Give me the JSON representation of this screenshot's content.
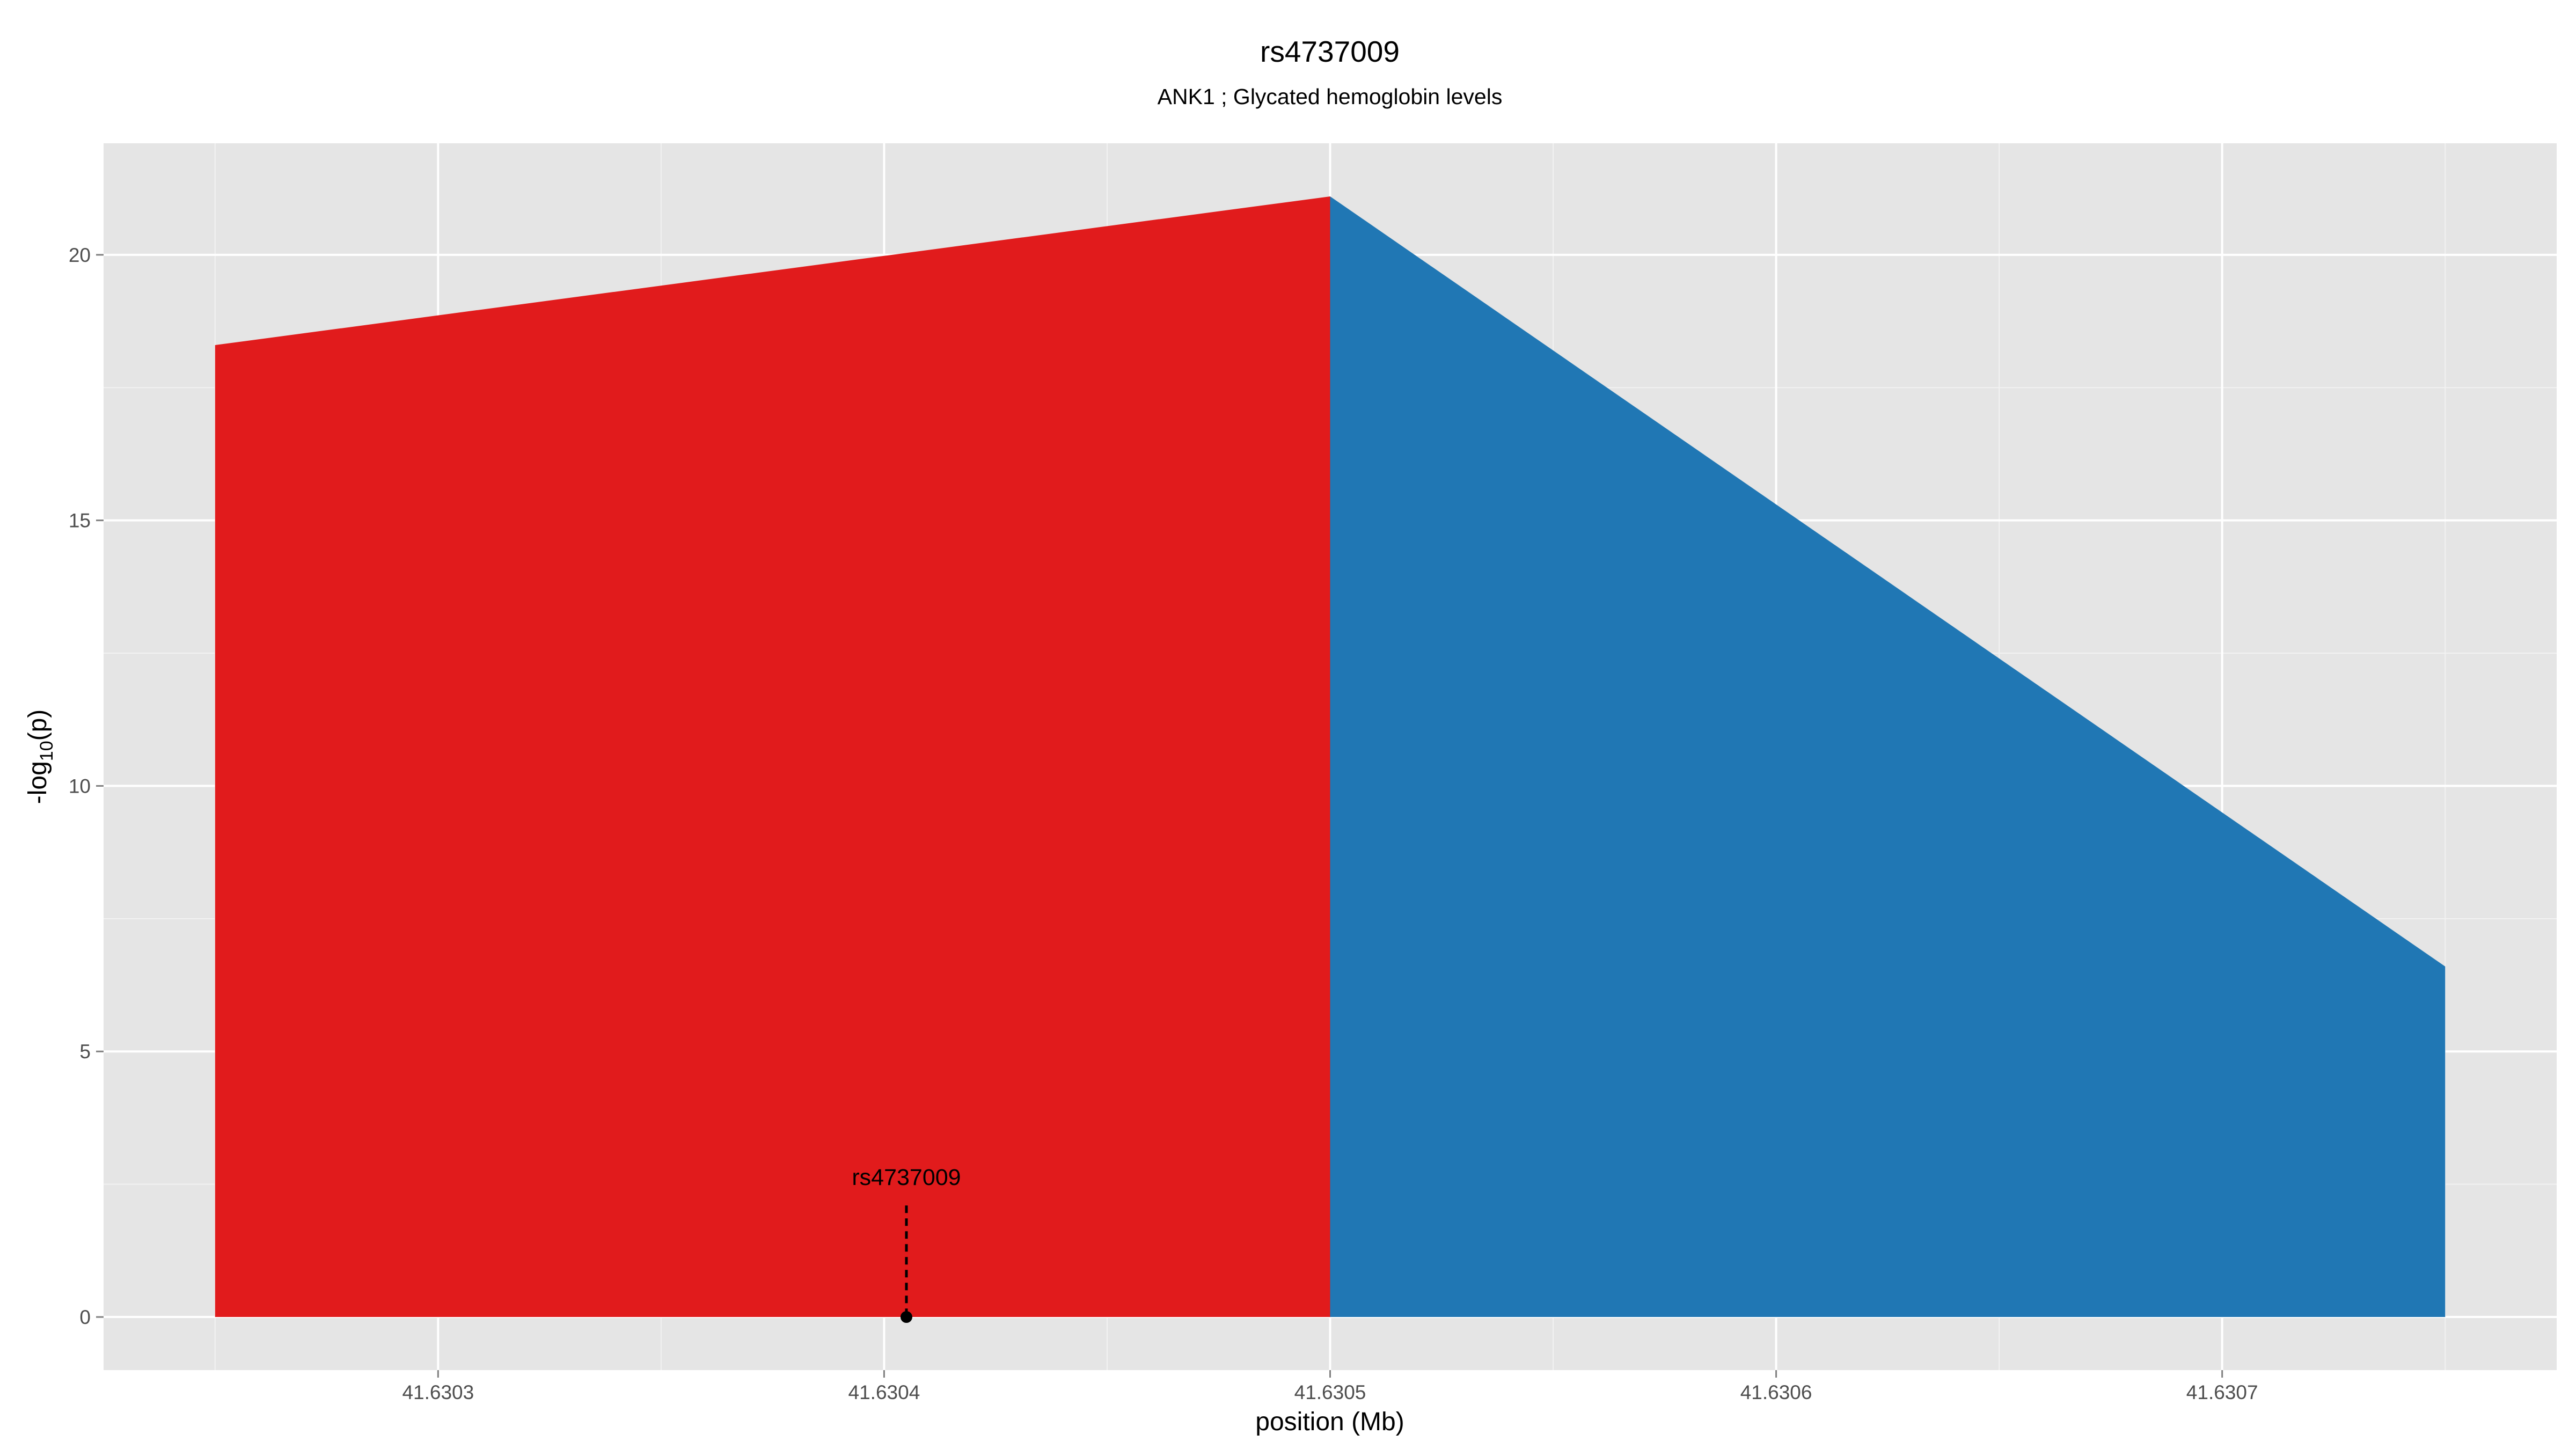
{
  "chart_data": {
    "type": "area",
    "title": "rs4737009",
    "subtitle": "ANK1 ; Glycated hemoglobin levels",
    "xlabel": "position (Mb)",
    "ylabel": {
      "prefix": "-log",
      "subscript": "10",
      "suffix": "(p)"
    },
    "xlim": [
      41.630225,
      41.630775
    ],
    "ylim": [
      -1.0,
      22.1
    ],
    "x_ticks": [
      41.6303,
      41.6304,
      41.6305,
      41.6306,
      41.6307
    ],
    "x_tick_labels": [
      "41.6303",
      "41.6304",
      "41.6305",
      "41.6306",
      "41.6307"
    ],
    "y_ticks": [
      0,
      5,
      10,
      15,
      20
    ],
    "y_tick_labels": [
      "0",
      "5",
      "10",
      "15",
      "20"
    ],
    "grid": true,
    "series": [
      {
        "color": "#e11b1c",
        "x": [
          41.63025,
          41.6305
        ],
        "y": [
          18.3,
          21.1
        ]
      },
      {
        "color": "#2077b4",
        "x": [
          41.6305,
          41.63075
        ],
        "y": [
          21.1,
          6.6
        ]
      }
    ],
    "annotation": {
      "label": "rs4737009",
      "x": 41.630405,
      "y": 0,
      "line_top": 2.1
    }
  },
  "colors": {
    "panel": "#e5e5e5",
    "grid_major": "#ffffff",
    "grid_minor": "#f2f2f2",
    "tick": "#7f7f7f"
  }
}
